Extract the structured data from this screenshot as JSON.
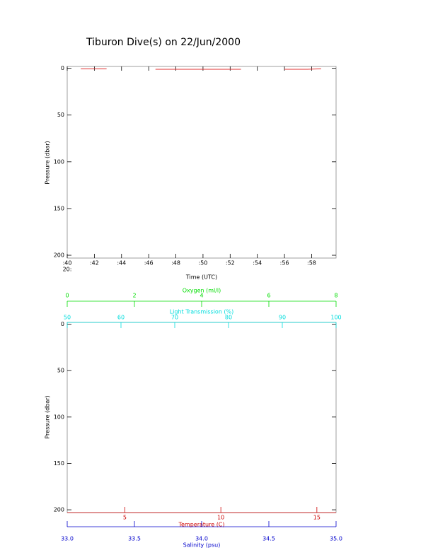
{
  "chart_data": [
    {
      "type": "line",
      "title": "Tiburon Dive(s) on 22/Jun/2000",
      "xlabel": "Time (UTC)",
      "ylabel": "Pressure (dbar)",
      "x_hour_label": "20:",
      "xlim": [
        40,
        59.8
      ],
      "ylim": [
        -2,
        203
      ],
      "y_inverted": true,
      "xticks": [
        {
          "value": 40,
          "label": ":40"
        },
        {
          "value": 42,
          "label": ":42"
        },
        {
          "value": 44,
          "label": ":44"
        },
        {
          "value": 46,
          "label": ":46"
        },
        {
          "value": 48,
          "label": ":48"
        },
        {
          "value": 50,
          "label": ":50"
        },
        {
          "value": 52,
          "label": ":52"
        },
        {
          "value": 54,
          "label": ":54"
        },
        {
          "value": 56,
          "label": ":56"
        },
        {
          "value": 58,
          "label": ":58"
        }
      ],
      "yticks": [
        0,
        50,
        100,
        150,
        200
      ],
      "x": [
        41,
        42.9,
        44,
        46.5,
        49,
        52.8,
        54,
        56,
        57.7,
        58.7
      ],
      "values": [
        0.5,
        0.5,
        null,
        1,
        1,
        1,
        null,
        1,
        1,
        0.5
      ],
      "color": "#e03030"
    },
    {
      "type": "profile",
      "ylabel": "Pressure (dbar)",
      "ylim": [
        -2,
        203
      ],
      "y_inverted": true,
      "yticks": [
        0,
        50,
        100,
        150,
        200
      ],
      "x_axes": [
        {
          "label": "Oxygen (ml/l)",
          "color": "#00dd00",
          "xlim": [
            0,
            8
          ],
          "xticks": [
            0,
            2,
            4,
            6,
            8
          ]
        },
        {
          "label": "Light Transmission (%)",
          "color": "#00dddd",
          "xlim": [
            50,
            100
          ],
          "xticks": [
            50,
            60,
            70,
            80,
            90,
            100
          ]
        },
        {
          "label": "Temperature (C)",
          "color": "#cc0000",
          "xlim": [
            2,
            16
          ],
          "xticks": [
            5,
            10,
            15
          ]
        },
        {
          "label": "Salinity (psu)",
          "color": "#0000cc",
          "xlim": [
            33,
            35
          ],
          "xticks": [
            {
              "value": 33,
              "label": "33.0"
            },
            33.5,
            {
              "value": 34,
              "label": "34.0"
            },
            34.5,
            {
              "value": 35,
              "label": "35.0"
            }
          ]
        }
      ]
    }
  ]
}
